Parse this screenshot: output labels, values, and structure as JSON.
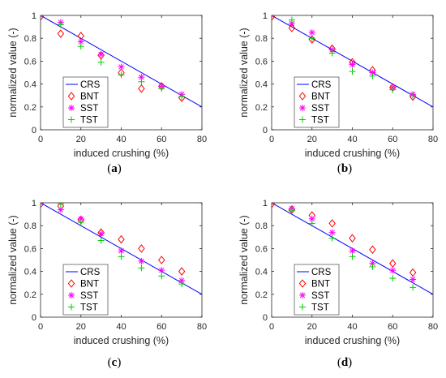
{
  "chart_data": [
    {
      "type": "scatter",
      "caption": "(a)",
      "xlabel": "induced crushing (%)",
      "ylabel": "normalized value (-)",
      "xlim": [
        0,
        80
      ],
      "ylim": [
        0,
        1
      ],
      "xticks": [
        0,
        20,
        40,
        60,
        80
      ],
      "yticks": [
        0,
        0.2,
        0.4,
        0.6,
        0.8,
        1
      ],
      "legend_position": "bottom-left",
      "grid": false,
      "series": [
        {
          "name": "CRS",
          "kind": "line",
          "color": "#0000ff",
          "x": [
            0,
            80
          ],
          "y": [
            1.0,
            0.2
          ]
        },
        {
          "name": "BNT",
          "kind": "diamond",
          "color": "#ff0000",
          "x": [
            0,
            10,
            20,
            30,
            40,
            50,
            60,
            70
          ],
          "y": [
            0.99,
            0.84,
            0.82,
            0.65,
            0.5,
            0.36,
            0.38,
            0.28
          ]
        },
        {
          "name": "SST",
          "kind": "asterisk",
          "color": "#ff00ff",
          "x": [
            0,
            10,
            20,
            30,
            40,
            50,
            60,
            70
          ],
          "y": [
            1.0,
            0.94,
            0.77,
            0.66,
            0.55,
            0.46,
            0.38,
            0.31
          ]
        },
        {
          "name": "TST",
          "kind": "plus",
          "color": "#00cc00",
          "x": [
            0,
            10,
            20,
            30,
            40,
            50,
            60,
            70
          ],
          "y": [
            1.0,
            0.92,
            0.73,
            0.59,
            0.48,
            0.42,
            0.36,
            0.29
          ]
        }
      ]
    },
    {
      "type": "scatter",
      "caption": "(b)",
      "xlabel": "induced crushing (%)",
      "ylabel": "normalized value (-)",
      "xlim": [
        0,
        80
      ],
      "ylim": [
        0,
        1
      ],
      "xticks": [
        0,
        20,
        40,
        60,
        80
      ],
      "yticks": [
        0,
        0.2,
        0.4,
        0.6,
        0.8,
        1
      ],
      "legend_position": "bottom-left",
      "grid": false,
      "series": [
        {
          "name": "CRS",
          "kind": "line",
          "color": "#0000ff",
          "x": [
            0,
            80
          ],
          "y": [
            1.0,
            0.2
          ]
        },
        {
          "name": "BNT",
          "kind": "diamond",
          "color": "#ff0000",
          "x": [
            0,
            10,
            20,
            30,
            40,
            50,
            60,
            70
          ],
          "y": [
            0.99,
            0.89,
            0.79,
            0.71,
            0.59,
            0.52,
            0.37,
            0.29
          ]
        },
        {
          "name": "SST",
          "kind": "asterisk",
          "color": "#ff00ff",
          "x": [
            0,
            10,
            20,
            30,
            40,
            50,
            60,
            70
          ],
          "y": [
            1.0,
            0.93,
            0.85,
            0.7,
            0.57,
            0.5,
            0.37,
            0.31
          ]
        },
        {
          "name": "TST",
          "kind": "plus",
          "color": "#00cc00",
          "x": [
            0,
            10,
            20,
            30,
            40,
            50,
            60,
            70
          ],
          "y": [
            1.0,
            0.96,
            0.8,
            0.67,
            0.51,
            0.47,
            0.35,
            0.3
          ]
        }
      ]
    },
    {
      "type": "scatter",
      "caption": "(c)",
      "xlabel": "induced crushing (%)",
      "ylabel": "normalized value (-)",
      "xlim": [
        0,
        80
      ],
      "ylim": [
        0,
        1
      ],
      "xticks": [
        0,
        20,
        40,
        60,
        80
      ],
      "yticks": [
        0,
        0.2,
        0.4,
        0.6,
        0.8,
        1
      ],
      "legend_position": "bottom-left",
      "grid": false,
      "series": [
        {
          "name": "CRS",
          "kind": "line",
          "color": "#0000ff",
          "x": [
            0,
            80
          ],
          "y": [
            1.0,
            0.2
          ]
        },
        {
          "name": "BNT",
          "kind": "diamond",
          "color": "#ff0000",
          "x": [
            0,
            10,
            20,
            30,
            40,
            50,
            60,
            70
          ],
          "y": [
            0.99,
            0.97,
            0.85,
            0.74,
            0.68,
            0.6,
            0.5,
            0.4
          ]
        },
        {
          "name": "SST",
          "kind": "asterisk",
          "color": "#ff00ff",
          "x": [
            0,
            10,
            20,
            30,
            40,
            50,
            60,
            70
          ],
          "y": [
            1.0,
            0.94,
            0.86,
            0.73,
            0.58,
            0.49,
            0.41,
            0.32
          ]
        },
        {
          "name": "TST",
          "kind": "plus",
          "color": "#00cc00",
          "x": [
            0,
            10,
            20,
            30,
            40,
            50,
            60,
            70
          ],
          "y": [
            1.0,
            0.99,
            0.83,
            0.67,
            0.53,
            0.43,
            0.36,
            0.29
          ]
        }
      ]
    },
    {
      "type": "scatter",
      "caption": "(d)",
      "xlabel": "induced crushing (%)",
      "ylabel": "normalized value (-)",
      "xlim": [
        0,
        80
      ],
      "ylim": [
        0,
        1
      ],
      "xticks": [
        0,
        20,
        40,
        60,
        80
      ],
      "yticks": [
        0,
        0.2,
        0.4,
        0.6,
        0.8,
        1
      ],
      "legend_position": "bottom-left",
      "grid": false,
      "series": [
        {
          "name": "CRS",
          "kind": "line",
          "color": "#0000ff",
          "x": [
            0,
            80
          ],
          "y": [
            1.0,
            0.2
          ]
        },
        {
          "name": "BNT",
          "kind": "diamond",
          "color": "#ff0000",
          "x": [
            0,
            10,
            20,
            30,
            40,
            50,
            60,
            70
          ],
          "y": [
            0.99,
            0.94,
            0.89,
            0.82,
            0.69,
            0.59,
            0.47,
            0.39
          ]
        },
        {
          "name": "SST",
          "kind": "asterisk",
          "color": "#ff00ff",
          "x": [
            0,
            10,
            20,
            30,
            40,
            50,
            60,
            70
          ],
          "y": [
            1.0,
            0.95,
            0.86,
            0.74,
            0.58,
            0.47,
            0.41,
            0.33
          ]
        },
        {
          "name": "TST",
          "kind": "plus",
          "color": "#00cc00",
          "x": [
            0,
            10,
            20,
            30,
            40,
            50,
            60,
            70
          ],
          "y": [
            1.0,
            0.93,
            0.82,
            0.69,
            0.53,
            0.44,
            0.34,
            0.26
          ]
        }
      ]
    }
  ]
}
